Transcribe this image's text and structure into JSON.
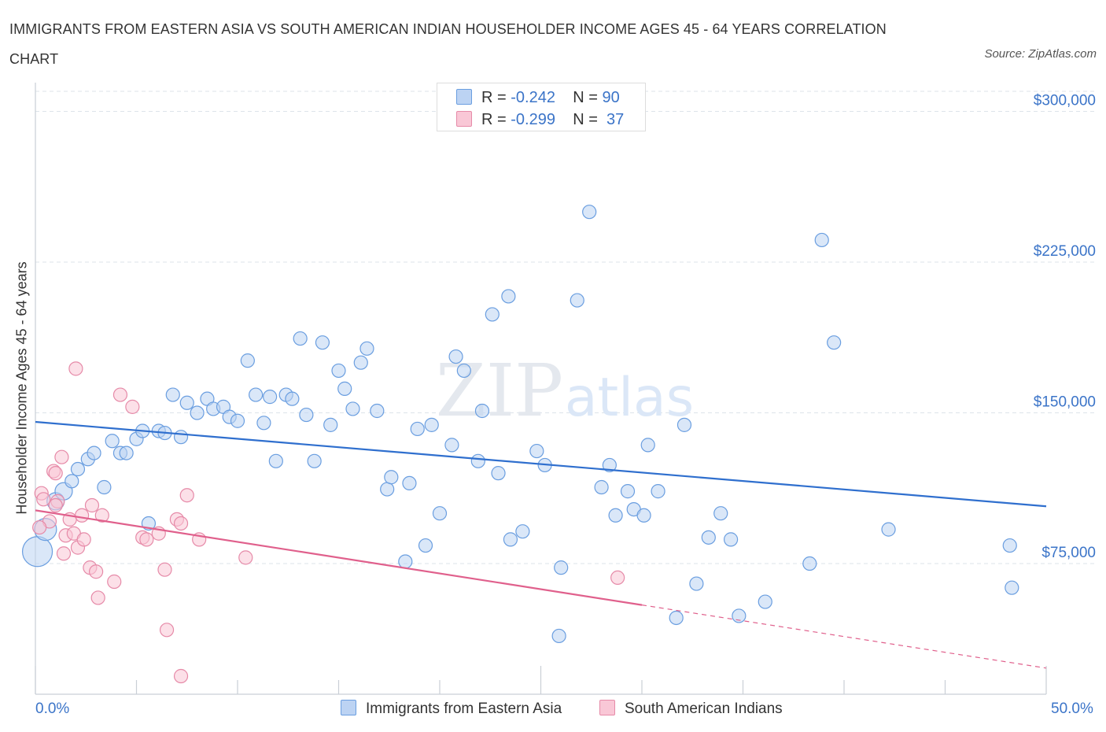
{
  "title": "IMMIGRANTS FROM EASTERN ASIA VS SOUTH AMERICAN INDIAN HOUSEHOLDER INCOME AGES 45 - 64 YEARS CORRELATION CHART",
  "source": "Source: ZipAtlas.com",
  "watermark": {
    "zip": "ZIP",
    "atlas": "atlas"
  },
  "legend": {
    "blue": {
      "r_label": "R =",
      "r_value": "-0.242",
      "n_label": "N =",
      "n_value": "90"
    },
    "pink": {
      "r_label": "R =",
      "r_value": "-0.299",
      "n_label": "N =",
      "n_value": "37"
    }
  },
  "colors": {
    "blue_fill": "#bcd3f3",
    "blue_stroke": "#6a9ee0",
    "blue_line": "#2f6fce",
    "pink_fill": "#f9c7d6",
    "pink_stroke": "#e68aa8",
    "pink_line": "#e0608c",
    "accent_text": "#3b74c8",
    "grid": "#dde3ea"
  },
  "chart_data": {
    "type": "scatter",
    "xlabel": "",
    "ylabel": "Householder Income Ages 45 - 64 years",
    "xlim": [
      0,
      50
    ],
    "ylim": [
      10000,
      310000
    ],
    "x_tick_labels": [
      "0.0%",
      "50.0%"
    ],
    "y_ticks": [
      75000,
      150000,
      225000,
      300000
    ],
    "y_tick_labels": [
      "$75,000",
      "$150,000",
      "$225,000",
      "$300,000"
    ],
    "legend_position": "top-center",
    "series": [
      {
        "name": "Immigrants from Eastern Asia",
        "color": "blue",
        "trend": {
          "x": [
            0,
            50
          ],
          "y": [
            145500,
            103500
          ],
          "dashed_from": null
        },
        "points": [
          {
            "x": 0.1,
            "y": 81000,
            "s": "xl"
          },
          {
            "x": 0.5,
            "y": 92000,
            "s": "lg"
          },
          {
            "x": 1.0,
            "y": 106000,
            "s": "md"
          },
          {
            "x": 1.4,
            "y": 111000,
            "s": "md"
          },
          {
            "x": 1.8,
            "y": 116000
          },
          {
            "x": 2.1,
            "y": 122000
          },
          {
            "x": 2.6,
            "y": 127000
          },
          {
            "x": 2.9,
            "y": 130000
          },
          {
            "x": 3.4,
            "y": 113000
          },
          {
            "x": 3.8,
            "y": 136000
          },
          {
            "x": 4.2,
            "y": 130000
          },
          {
            "x": 4.5,
            "y": 130000
          },
          {
            "x": 5.0,
            "y": 137000
          },
          {
            "x": 5.3,
            "y": 141000
          },
          {
            "x": 5.6,
            "y": 95000
          },
          {
            "x": 6.1,
            "y": 141000
          },
          {
            "x": 6.4,
            "y": 140000
          },
          {
            "x": 6.8,
            "y": 159000
          },
          {
            "x": 7.2,
            "y": 138000
          },
          {
            "x": 7.5,
            "y": 155000
          },
          {
            "x": 8.0,
            "y": 150000
          },
          {
            "x": 8.5,
            "y": 157000
          },
          {
            "x": 8.8,
            "y": 152000
          },
          {
            "x": 9.3,
            "y": 153000
          },
          {
            "x": 9.6,
            "y": 148000
          },
          {
            "x": 10.0,
            "y": 146000
          },
          {
            "x": 10.5,
            "y": 176000
          },
          {
            "x": 10.9,
            "y": 159000
          },
          {
            "x": 11.3,
            "y": 145000
          },
          {
            "x": 11.6,
            "y": 158000
          },
          {
            "x": 11.9,
            "y": 126000
          },
          {
            "x": 12.4,
            "y": 159000
          },
          {
            "x": 12.7,
            "y": 157000
          },
          {
            "x": 13.1,
            "y": 187000
          },
          {
            "x": 13.4,
            "y": 149000
          },
          {
            "x": 13.8,
            "y": 126000
          },
          {
            "x": 14.2,
            "y": 185000
          },
          {
            "x": 14.6,
            "y": 144000
          },
          {
            "x": 15.0,
            "y": 171000
          },
          {
            "x": 15.3,
            "y": 162000
          },
          {
            "x": 15.7,
            "y": 152000
          },
          {
            "x": 16.1,
            "y": 175000
          },
          {
            "x": 16.4,
            "y": 182000
          },
          {
            "x": 16.9,
            "y": 151000
          },
          {
            "x": 17.4,
            "y": 112000
          },
          {
            "x": 17.6,
            "y": 118000
          },
          {
            "x": 18.3,
            "y": 76000
          },
          {
            "x": 18.5,
            "y": 115000
          },
          {
            "x": 18.9,
            "y": 142000
          },
          {
            "x": 19.3,
            "y": 84000
          },
          {
            "x": 19.6,
            "y": 144000
          },
          {
            "x": 20.0,
            "y": 100000
          },
          {
            "x": 20.6,
            "y": 134000
          },
          {
            "x": 20.8,
            "y": 178000
          },
          {
            "x": 21.2,
            "y": 171000
          },
          {
            "x": 21.9,
            "y": 126000
          },
          {
            "x": 22.1,
            "y": 151000
          },
          {
            "x": 22.6,
            "y": 199000
          },
          {
            "x": 22.9,
            "y": 120000
          },
          {
            "x": 23.4,
            "y": 208000
          },
          {
            "x": 23.5,
            "y": 87000
          },
          {
            "x": 24.1,
            "y": 91000
          },
          {
            "x": 24.8,
            "y": 131000
          },
          {
            "x": 25.2,
            "y": 124000
          },
          {
            "x": 25.9,
            "y": 39000
          },
          {
            "x": 26.0,
            "y": 73000
          },
          {
            "x": 26.8,
            "y": 206000
          },
          {
            "x": 27.4,
            "y": 250000
          },
          {
            "x": 28.0,
            "y": 113000
          },
          {
            "x": 28.4,
            "y": 124000
          },
          {
            "x": 28.7,
            "y": 99000
          },
          {
            "x": 29.3,
            "y": 111000
          },
          {
            "x": 29.6,
            "y": 102000
          },
          {
            "x": 30.1,
            "y": 99000
          },
          {
            "x": 30.3,
            "y": 134000
          },
          {
            "x": 30.8,
            "y": 111000
          },
          {
            "x": 31.7,
            "y": 48000
          },
          {
            "x": 32.1,
            "y": 144000
          },
          {
            "x": 32.7,
            "y": 65000
          },
          {
            "x": 33.3,
            "y": 88000
          },
          {
            "x": 33.9,
            "y": 100000
          },
          {
            "x": 34.4,
            "y": 87000
          },
          {
            "x": 34.8,
            "y": 49000
          },
          {
            "x": 36.1,
            "y": 56000
          },
          {
            "x": 38.3,
            "y": 75000
          },
          {
            "x": 38.9,
            "y": 236000
          },
          {
            "x": 39.5,
            "y": 185000
          },
          {
            "x": 42.2,
            "y": 92000
          },
          {
            "x": 48.2,
            "y": 84000
          },
          {
            "x": 48.3,
            "y": 63000
          }
        ]
      },
      {
        "name": "South American Indians",
        "color": "pink",
        "trend": {
          "x": [
            0,
            50
          ],
          "y": [
            101500,
            23000
          ],
          "dashed_from": 30
        },
        "points": [
          {
            "x": 0.3,
            "y": 110000
          },
          {
            "x": 0.4,
            "y": 107000
          },
          {
            "x": 0.7,
            "y": 96000
          },
          {
            "x": 0.9,
            "y": 121000
          },
          {
            "x": 1.0,
            "y": 120000
          },
          {
            "x": 1.1,
            "y": 106000
          },
          {
            "x": 1.3,
            "y": 128000
          },
          {
            "x": 1.4,
            "y": 80000
          },
          {
            "x": 1.5,
            "y": 89000
          },
          {
            "x": 1.7,
            "y": 97000
          },
          {
            "x": 1.9,
            "y": 90000
          },
          {
            "x": 2.0,
            "y": 172000
          },
          {
            "x": 2.1,
            "y": 83000
          },
          {
            "x": 2.3,
            "y": 99000
          },
          {
            "x": 2.4,
            "y": 87000
          },
          {
            "x": 2.7,
            "y": 73000
          },
          {
            "x": 2.8,
            "y": 104000
          },
          {
            "x": 3.0,
            "y": 71000
          },
          {
            "x": 3.1,
            "y": 58000
          },
          {
            "x": 3.3,
            "y": 99000
          },
          {
            "x": 3.9,
            "y": 66000
          },
          {
            "x": 4.2,
            "y": 159000
          },
          {
            "x": 4.8,
            "y": 153000
          },
          {
            "x": 5.3,
            "y": 88000
          },
          {
            "x": 5.5,
            "y": 87000
          },
          {
            "x": 6.1,
            "y": 90000
          },
          {
            "x": 6.4,
            "y": 72000
          },
          {
            "x": 6.5,
            "y": 42000
          },
          {
            "x": 7.0,
            "y": 97000
          },
          {
            "x": 7.2,
            "y": 95000
          },
          {
            "x": 7.2,
            "y": 19000
          },
          {
            "x": 7.5,
            "y": 109000
          },
          {
            "x": 8.1,
            "y": 87000
          },
          {
            "x": 10.4,
            "y": 78000
          },
          {
            "x": 28.8,
            "y": 68000
          },
          {
            "x": 1.0,
            "y": 104000
          },
          {
            "x": 0.2,
            "y": 93000
          }
        ]
      }
    ]
  },
  "bottom_legend": {
    "blue_label": "Immigrants from Eastern Asia",
    "pink_label": "South American Indians"
  }
}
